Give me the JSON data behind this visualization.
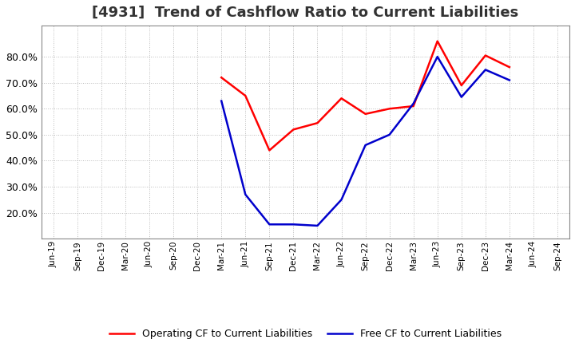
{
  "title": "[4931]  Trend of Cashflow Ratio to Current Liabilities",
  "title_fontsize": 13,
  "title_color": "#333333",
  "background_color": "#ffffff",
  "plot_bg": "#ffffff",
  "grid_color": "#aaaaaa",
  "x_labels": [
    "Jun-19",
    "Sep-19",
    "Dec-19",
    "Mar-20",
    "Jun-20",
    "Sep-20",
    "Dec-20",
    "Mar-21",
    "Jun-21",
    "Sep-21",
    "Dec-21",
    "Mar-22",
    "Jun-22",
    "Sep-22",
    "Dec-22",
    "Mar-23",
    "Jun-23",
    "Sep-23",
    "Dec-23",
    "Mar-24",
    "Jun-24",
    "Sep-24"
  ],
  "operating_cf": [
    null,
    null,
    null,
    null,
    null,
    null,
    null,
    0.72,
    0.65,
    0.44,
    0.52,
    0.545,
    0.64,
    0.58,
    0.6,
    0.61,
    0.86,
    0.69,
    0.805,
    0.76,
    null,
    null
  ],
  "free_cf": [
    null,
    null,
    null,
    null,
    null,
    null,
    null,
    0.63,
    0.27,
    0.155,
    0.155,
    0.15,
    0.25,
    0.46,
    0.5,
    0.62,
    0.8,
    0.645,
    0.75,
    0.71,
    null,
    null
  ],
  "ylim_min": 0.1,
  "ylim_max": 0.92,
  "yticks": [
    0.2,
    0.3,
    0.4,
    0.5,
    0.6,
    0.7,
    0.8
  ],
  "operating_color": "#ff0000",
  "free_color": "#0000cc",
  "legend_op": "Operating CF to Current Liabilities",
  "legend_free": "Free CF to Current Liabilities",
  "linewidth": 1.8
}
